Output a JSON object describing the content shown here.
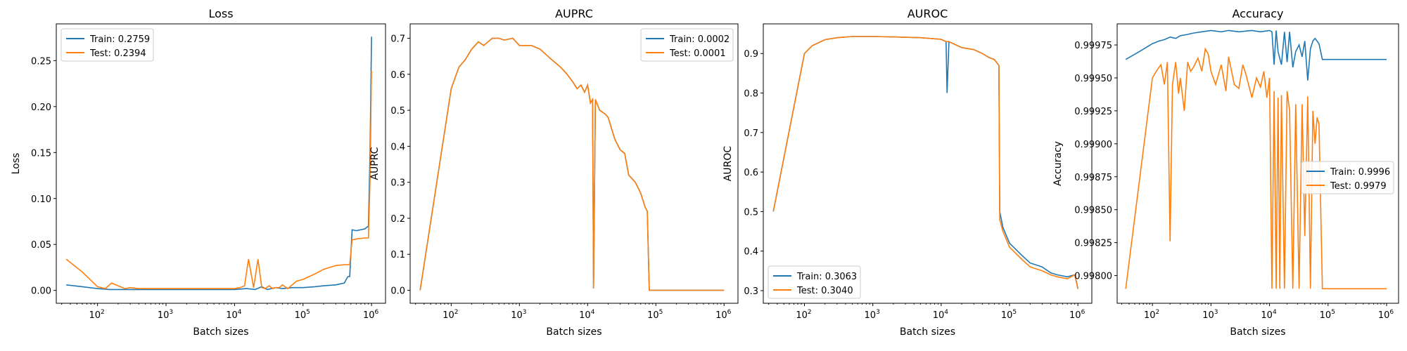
{
  "chart_data": [
    {
      "type": "line",
      "title": "Loss",
      "xlabel": "Batch sizes",
      "ylabel": "Loss",
      "xscale": "log",
      "xlim": [
        25,
        1600000
      ],
      "ylim": [
        -0.014,
        0.29
      ],
      "yticks": [
        0.0,
        0.05,
        0.1,
        0.15,
        0.2,
        0.25
      ],
      "ytick_labels": [
        "0.00",
        "0.05",
        "0.10",
        "0.15",
        "0.20",
        "0.25"
      ],
      "xticks": [
        100,
        1000,
        10000,
        100000,
        1000000
      ],
      "xtick_exponents": [
        "2",
        "3",
        "4",
        "5",
        "6"
      ],
      "legend_position": "upper-left",
      "series": [
        {
          "name": "Train: 0.2759",
          "color": "#1f77b4",
          "x": [
            35,
            60,
            100,
            150,
            200,
            300,
            500,
            1000,
            2000,
            5000,
            10000,
            15000,
            20000,
            25000,
            30000,
            40000,
            50000,
            70000,
            100000,
            150000,
            200000,
            300000,
            400000,
            450000,
            480000,
            520000,
            600000,
            800000,
            900000,
            950000,
            1000000
          ],
          "y": [
            0.006,
            0.004,
            0.002,
            0.001,
            0.001,
            0.001,
            0.001,
            0.001,
            0.001,
            0.001,
            0.001,
            0.002,
            0.001,
            0.004,
            0.001,
            0.003,
            0.002,
            0.003,
            0.003,
            0.004,
            0.005,
            0.006,
            0.008,
            0.015,
            0.015,
            0.066,
            0.065,
            0.067,
            0.07,
            0.15,
            0.276
          ]
        },
        {
          "name": "Test: 0.2394",
          "color": "#ff7f0e",
          "x": [
            35,
            60,
            100,
            130,
            160,
            200,
            250,
            300,
            400,
            500,
            700,
            1000,
            2000,
            5000,
            10000,
            12000,
            14000,
            16000,
            19000,
            22000,
            25000,
            28000,
            32000,
            36000,
            40000,
            45000,
            50000,
            60000,
            80000,
            100000,
            150000,
            200000,
            300000,
            400000,
            480000,
            520000,
            600000,
            800000,
            900000,
            950000,
            1000000
          ],
          "y": [
            0.034,
            0.02,
            0.004,
            0.002,
            0.008,
            0.005,
            0.002,
            0.003,
            0.002,
            0.002,
            0.002,
            0.002,
            0.002,
            0.002,
            0.002,
            0.003,
            0.005,
            0.034,
            0.003,
            0.034,
            0.003,
            0.002,
            0.005,
            0.002,
            0.003,
            0.003,
            0.006,
            0.002,
            0.01,
            0.012,
            0.018,
            0.023,
            0.027,
            0.028,
            0.028,
            0.055,
            0.056,
            0.057,
            0.057,
            0.12,
            0.239
          ]
        }
      ]
    },
    {
      "type": "line",
      "title": "AUPRC",
      "xlabel": "Batch sizes",
      "ylabel": "AUPRC",
      "xscale": "log",
      "xlim": [
        25,
        1600000
      ],
      "ylim": [
        -0.036,
        0.74
      ],
      "yticks": [
        0.0,
        0.1,
        0.2,
        0.3,
        0.4,
        0.5,
        0.6,
        0.7
      ],
      "ytick_labels": [
        "0.0",
        "0.1",
        "0.2",
        "0.3",
        "0.4",
        "0.5",
        "0.6",
        "0.7"
      ],
      "xticks": [
        100,
        1000,
        10000,
        100000,
        1000000
      ],
      "xtick_exponents": [
        "2",
        "3",
        "4",
        "5",
        "6"
      ],
      "legend_position": "upper-right",
      "series": [
        {
          "name": "Train: 0.0002",
          "color": "#1f77b4",
          "x": [
            35,
            100,
            130,
            160,
            200,
            250,
            300,
            400,
            500,
            600,
            800,
            1000,
            1500,
            2000,
            3000,
            4000,
            5000,
            6000,
            7000,
            8000,
            9000,
            10000,
            11000,
            11800,
            12200,
            13000,
            15000,
            18000,
            20000,
            25000,
            30000,
            35000,
            40000,
            50000,
            60000,
            70000,
            75000,
            80000,
            100000,
            1000000
          ],
          "y": [
            0.0,
            0.56,
            0.62,
            0.64,
            0.67,
            0.69,
            0.68,
            0.7,
            0.7,
            0.695,
            0.7,
            0.68,
            0.68,
            0.67,
            0.64,
            0.62,
            0.6,
            0.58,
            0.56,
            0.57,
            0.55,
            0.57,
            0.52,
            0.53,
            0.005,
            0.53,
            0.5,
            0.49,
            0.48,
            0.42,
            0.39,
            0.38,
            0.32,
            0.3,
            0.27,
            0.23,
            0.22,
            0.0,
            0.0,
            0.0
          ]
        },
        {
          "name": "Test: 0.0001",
          "color": "#ff7f0e",
          "x": [
            35,
            100,
            130,
            160,
            200,
            250,
            300,
            400,
            500,
            600,
            800,
            1000,
            1500,
            2000,
            3000,
            4000,
            5000,
            6000,
            7000,
            8000,
            9000,
            10000,
            11000,
            11800,
            12200,
            13000,
            15000,
            18000,
            20000,
            25000,
            30000,
            35000,
            40000,
            50000,
            60000,
            70000,
            75000,
            80000,
            100000,
            1000000
          ],
          "y": [
            0.0,
            0.56,
            0.62,
            0.64,
            0.67,
            0.69,
            0.68,
            0.7,
            0.7,
            0.695,
            0.7,
            0.68,
            0.68,
            0.67,
            0.64,
            0.62,
            0.6,
            0.58,
            0.56,
            0.57,
            0.55,
            0.57,
            0.52,
            0.53,
            0.005,
            0.53,
            0.5,
            0.49,
            0.48,
            0.42,
            0.39,
            0.38,
            0.32,
            0.3,
            0.27,
            0.23,
            0.22,
            0.0,
            0.0,
            0.0
          ]
        }
      ]
    },
    {
      "type": "line",
      "title": "AUROC",
      "xlabel": "Batch sizes",
      "ylabel": "AUROC",
      "xscale": "log",
      "xlim": [
        25,
        1600000
      ],
      "ylim": [
        0.268,
        0.975
      ],
      "yticks": [
        0.3,
        0.4,
        0.5,
        0.6,
        0.7,
        0.8,
        0.9
      ],
      "ytick_labels": [
        "0.3",
        "0.4",
        "0.5",
        "0.6",
        "0.7",
        "0.8",
        "0.9"
      ],
      "xticks": [
        100,
        1000,
        10000,
        100000,
        1000000
      ],
      "xtick_exponents": [
        "2",
        "3",
        "4",
        "5",
        "6"
      ],
      "legend_position": "lower-left",
      "series": [
        {
          "name": "Train: 0.3063",
          "color": "#1f77b4",
          "x": [
            35,
            100,
            130,
            200,
            300,
            500,
            1000,
            2000,
            5000,
            10000,
            11800,
            12200,
            13000,
            15000,
            20000,
            30000,
            40000,
            50000,
            60000,
            70000,
            72000,
            80000,
            100000,
            150000,
            200000,
            300000,
            400000,
            500000,
            700000,
            900000,
            1000000
          ],
          "y": [
            0.5,
            0.9,
            0.92,
            0.935,
            0.94,
            0.943,
            0.943,
            0.942,
            0.94,
            0.936,
            0.93,
            0.8,
            0.93,
            0.925,
            0.915,
            0.91,
            0.9,
            0.89,
            0.885,
            0.87,
            0.5,
            0.46,
            0.42,
            0.39,
            0.37,
            0.36,
            0.345,
            0.34,
            0.335,
            0.34,
            0.306
          ]
        },
        {
          "name": "Test: 0.3040",
          "color": "#ff7f0e",
          "x": [
            35,
            100,
            130,
            200,
            300,
            500,
            1000,
            2000,
            5000,
            10000,
            11800,
            12200,
            13000,
            15000,
            20000,
            30000,
            40000,
            50000,
            60000,
            70000,
            72000,
            80000,
            100000,
            150000,
            200000,
            300000,
            400000,
            500000,
            700000,
            900000,
            1000000
          ],
          "y": [
            0.5,
            0.9,
            0.92,
            0.935,
            0.94,
            0.943,
            0.943,
            0.942,
            0.94,
            0.936,
            0.93,
            0.93,
            0.93,
            0.925,
            0.915,
            0.91,
            0.9,
            0.89,
            0.885,
            0.87,
            0.48,
            0.45,
            0.41,
            0.38,
            0.36,
            0.35,
            0.34,
            0.335,
            0.33,
            0.34,
            0.304
          ]
        }
      ]
    },
    {
      "type": "line",
      "title": "Accuracy",
      "xlabel": "Batch sizes",
      "ylabel": "Accuracy",
      "xscale": "log",
      "xlim": [
        25,
        1600000
      ],
      "ylim": [
        0.99779,
        0.99991
      ],
      "yticks": [
        0.998,
        0.99825,
        0.9985,
        0.99875,
        0.999,
        0.99925,
        0.9995,
        0.99975
      ],
      "ytick_labels": [
        "0.99800",
        "0.99825",
        "0.99850",
        "0.99875",
        "0.99900",
        "0.99925",
        "0.99950",
        "0.99975"
      ],
      "xticks": [
        100,
        1000,
        10000,
        100000,
        1000000
      ],
      "xtick_exponents": [
        "2",
        "3",
        "4",
        "5",
        "6"
      ],
      "legend_position": "center-right",
      "series": [
        {
          "name": "Train: 0.9996",
          "color": "#1f77b4",
          "x": [
            35,
            60,
            100,
            130,
            160,
            200,
            250,
            300,
            400,
            500,
            700,
            1000,
            1500,
            2000,
            3000,
            5000,
            7000,
            10000,
            11000,
            12000,
            13000,
            14000,
            16000,
            18000,
            20000,
            22000,
            25000,
            28000,
            32000,
            36000,
            40000,
            45000,
            50000,
            55000,
            60000,
            70000,
            80000,
            100000,
            1000000
          ],
          "y": [
            0.99964,
            0.9997,
            0.99976,
            0.99978,
            0.99979,
            0.99981,
            0.9998,
            0.99982,
            0.99983,
            0.99984,
            0.99985,
            0.99986,
            0.99985,
            0.99986,
            0.99985,
            0.99986,
            0.99985,
            0.99986,
            0.99985,
            0.9996,
            0.99986,
            0.9997,
            0.9996,
            0.99985,
            0.99962,
            0.99985,
            0.99958,
            0.9997,
            0.99975,
            0.99966,
            0.99978,
            0.99948,
            0.99972,
            0.99978,
            0.9998,
            0.99976,
            0.99964,
            0.99964,
            0.99964
          ]
        },
        {
          "name": "Test: 0.9979",
          "color": "#ff7f0e",
          "x": [
            35,
            100,
            120,
            140,
            160,
            180,
            200,
            220,
            250,
            280,
            300,
            350,
            400,
            450,
            500,
            600,
            700,
            800,
            900,
            1000,
            1200,
            1500,
            1800,
            2000,
            2500,
            3000,
            3500,
            4000,
            5000,
            6000,
            7000,
            8000,
            9000,
            10000,
            11000,
            12000,
            13000,
            14000,
            15000,
            16000,
            18000,
            20000,
            22000,
            25000,
            28000,
            32000,
            36000,
            40000,
            45000,
            50000,
            55000,
            60000,
            65000,
            70000,
            80000,
            100000,
            1000000
          ],
          "y": [
            0.9979,
            0.9995,
            0.99956,
            0.9996,
            0.99945,
            0.99962,
            0.99826,
            0.99945,
            0.99962,
            0.99938,
            0.9995,
            0.99925,
            0.99962,
            0.99955,
            0.99958,
            0.99965,
            0.99955,
            0.99972,
            0.99968,
            0.99955,
            0.99945,
            0.9996,
            0.9994,
            0.99966,
            0.99945,
            0.99942,
            0.9996,
            0.99952,
            0.99935,
            0.9995,
            0.99943,
            0.99955,
            0.99935,
            0.9995,
            0.9979,
            0.9994,
            0.9979,
            0.99935,
            0.9979,
            0.99937,
            0.9979,
            0.9994,
            0.99925,
            0.9979,
            0.9993,
            0.9979,
            0.9993,
            0.9983,
            0.99936,
            0.9979,
            0.99925,
            0.999,
            0.9992,
            0.99915,
            0.9979,
            0.9979,
            0.9979
          ]
        }
      ]
    }
  ]
}
